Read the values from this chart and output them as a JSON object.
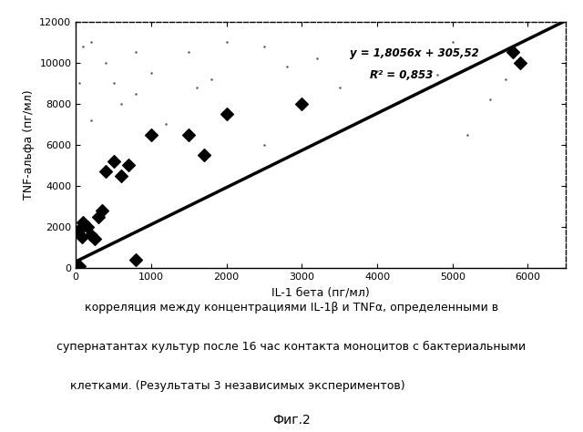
{
  "scatter_x": [
    0,
    30,
    50,
    80,
    100,
    150,
    200,
    250,
    300,
    350,
    400,
    500,
    600,
    700,
    800,
    1000,
    1500,
    1700,
    2000,
    3000,
    5800,
    5900
  ],
  "scatter_y": [
    0,
    1800,
    100,
    1500,
    2200,
    2000,
    1600,
    1400,
    2500,
    2800,
    4700,
    5200,
    4500,
    5000,
    400,
    6500,
    6500,
    5500,
    7500,
    8000,
    10500,
    10000
  ],
  "slope": 1.8056,
  "intercept": 305.52,
  "r2": 0.853,
  "equation_text": "y = 1,8056x + 305,52",
  "r2_text": "R² = 0,853",
  "xlabel": "IL-1 бета (пг/мл)",
  "ylabel": "TNF-альфа (пг/мл)",
  "xlim": [
    0,
    6500
  ],
  "ylim": [
    0,
    12000
  ],
  "xticks": [
    0,
    1000,
    2000,
    3000,
    4000,
    5000,
    6000
  ],
  "yticks": [
    0,
    2000,
    4000,
    6000,
    8000,
    10000,
    12000
  ],
  "caption_line1": "корреляция между концентрациями IL-1β и TNFα, определенными в",
  "caption_line2": "супернатантах культур после 16 час контакта моноцитов с бактериальными",
  "caption_line3": "клетками. (Результаты 3 независимых экспериментов)",
  "fig_label": "Фиг.2",
  "marker_color": "black",
  "marker_size": 7,
  "line_color": "black",
  "line_width": 2.5,
  "bg_color": "white",
  "small_dots_x": [
    200,
    500,
    800,
    1200,
    1600,
    2000,
    2500,
    3000,
    3800,
    4500,
    5200,
    5700,
    50,
    100,
    200,
    800,
    1000,
    1500,
    2000,
    2800,
    3200,
    4000,
    5000,
    5500,
    400,
    600,
    1800,
    2500,
    3500,
    4800
  ],
  "small_dots_y": [
    7200,
    9000,
    8500,
    7000,
    8800,
    7500,
    6000,
    7800,
    7200,
    8500,
    6500,
    9200,
    9000,
    10800,
    11000,
    10500,
    9500,
    10500,
    11000,
    9800,
    10200,
    9600,
    11000,
    8200,
    10000,
    8000,
    9200,
    10800,
    8800,
    9400
  ]
}
